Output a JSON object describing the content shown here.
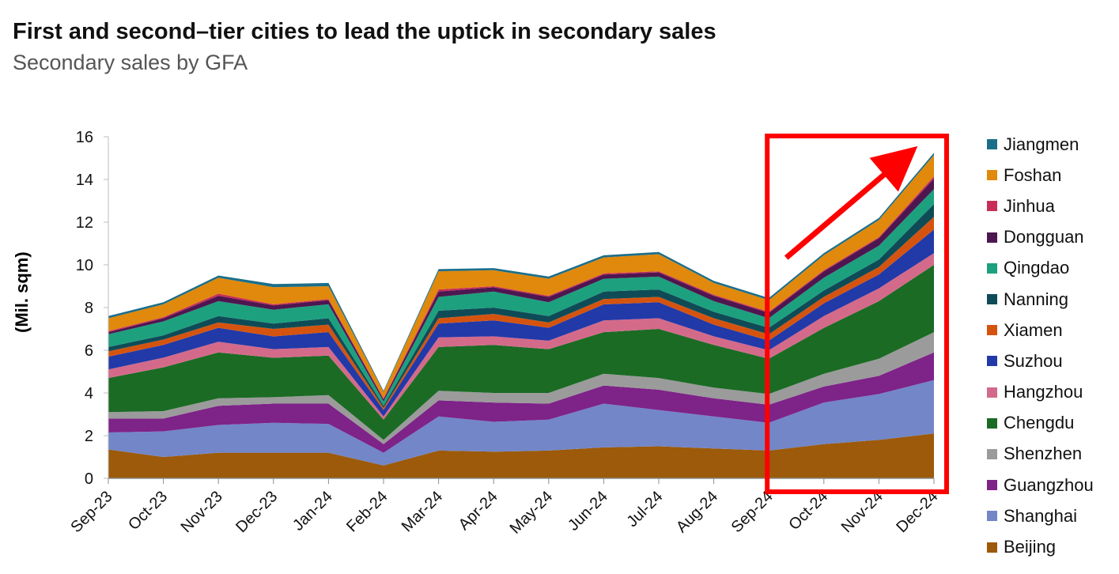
{
  "title": "First and second–tier cities to lead the uptick in secondary sales",
  "subtitle": "Secondary sales by GFA",
  "chart_data": {
    "type": "area",
    "stacked": true,
    "title": "First and second–tier cities to lead the uptick in secondary sales",
    "subtitle": "Secondary sales by GFA",
    "ylabel": "(Mil. sqm)",
    "xlabel": "",
    "ylim": [
      0,
      16
    ],
    "yticks": [
      "0",
      "2",
      "4",
      "6",
      "8",
      "10",
      "12",
      "14",
      "16"
    ],
    "grid": false,
    "legend_position": "right",
    "categories": [
      "Sep-23",
      "Oct-23",
      "Nov-23",
      "Dec-23",
      "Jan-24",
      "Feb-24",
      "Mar-24",
      "Apr-24",
      "May-24",
      "Jun-24",
      "Jul-24",
      "Aug-24",
      "Sep-24",
      "Oct-24",
      "Nov-24",
      "Dec-24"
    ],
    "series": [
      {
        "name": "Beijing",
        "color": "#9C5A0A",
        "values": [
          1.35,
          1.0,
          1.2,
          1.2,
          1.2,
          0.6,
          1.3,
          1.25,
          1.3,
          1.45,
          1.5,
          1.4,
          1.3,
          1.6,
          1.8,
          2.1
        ]
      },
      {
        "name": "Shanghai",
        "color": "#7286C8",
        "values": [
          0.8,
          1.2,
          1.3,
          1.4,
          1.35,
          0.6,
          1.6,
          1.4,
          1.45,
          2.05,
          1.7,
          1.5,
          1.3,
          1.95,
          2.15,
          2.5
        ]
      },
      {
        "name": "Guangzhou",
        "color": "#7E2388",
        "values": [
          0.65,
          0.6,
          0.9,
          0.9,
          0.95,
          0.4,
          0.75,
          0.9,
          0.75,
          0.85,
          0.95,
          0.85,
          0.85,
          0.75,
          0.85,
          1.3
        ]
      },
      {
        "name": "Shenzhen",
        "color": "#9B9B9B",
        "values": [
          0.3,
          0.35,
          0.35,
          0.3,
          0.4,
          0.2,
          0.45,
          0.45,
          0.5,
          0.55,
          0.55,
          0.5,
          0.5,
          0.6,
          0.8,
          0.95
        ]
      },
      {
        "name": "Chengdu",
        "color": "#1B6B24",
        "values": [
          1.6,
          2.05,
          2.15,
          1.85,
          1.85,
          0.95,
          2.05,
          2.25,
          2.05,
          1.95,
          2.3,
          2.0,
          1.65,
          2.15,
          2.7,
          3.15
        ]
      },
      {
        "name": "Hangzhou",
        "color": "#D46A8A",
        "values": [
          0.4,
          0.45,
          0.5,
          0.4,
          0.4,
          0.15,
          0.45,
          0.4,
          0.4,
          0.55,
          0.5,
          0.4,
          0.4,
          0.55,
          0.6,
          0.55
        ]
      },
      {
        "name": "Suzhou",
        "color": "#2239A8",
        "values": [
          0.6,
          0.6,
          0.65,
          0.6,
          0.7,
          0.3,
          0.65,
          0.75,
          0.6,
          0.75,
          0.75,
          0.55,
          0.45,
          0.6,
          0.65,
          1.1
        ]
      },
      {
        "name": "Xiamen",
        "color": "#D4540F",
        "values": [
          0.25,
          0.25,
          0.25,
          0.35,
          0.35,
          0.1,
          0.25,
          0.3,
          0.25,
          0.25,
          0.25,
          0.3,
          0.3,
          0.3,
          0.35,
          0.6
        ]
      },
      {
        "name": "Nanning",
        "color": "#0F4B57",
        "values": [
          0.2,
          0.2,
          0.3,
          0.25,
          0.3,
          0.1,
          0.35,
          0.3,
          0.3,
          0.35,
          0.35,
          0.3,
          0.3,
          0.3,
          0.35,
          0.6
        ]
      },
      {
        "name": "Qingdao",
        "color": "#1DA07E",
        "values": [
          0.6,
          0.65,
          0.7,
          0.65,
          0.65,
          0.2,
          0.65,
          0.75,
          0.65,
          0.6,
          0.6,
          0.5,
          0.45,
          0.6,
          0.65,
          0.7
        ]
      },
      {
        "name": "Dongguan",
        "color": "#4E1650",
        "values": [
          0.1,
          0.15,
          0.25,
          0.2,
          0.2,
          0.1,
          0.25,
          0.2,
          0.25,
          0.2,
          0.2,
          0.25,
          0.25,
          0.3,
          0.35,
          0.5
        ]
      },
      {
        "name": "Jinhua",
        "color": "#C72D59",
        "values": [
          0.05,
          0.05,
          0.1,
          0.05,
          0.05,
          0.05,
          0.1,
          0.05,
          0.05,
          0.05,
          0.05,
          0.05,
          0.05,
          0.05,
          0.05,
          0.1
        ]
      },
      {
        "name": "Foshan",
        "color": "#E0890C",
        "values": [
          0.6,
          0.6,
          0.75,
          0.8,
          0.6,
          0.3,
          0.85,
          0.75,
          0.8,
          0.75,
          0.8,
          0.55,
          0.55,
          0.7,
          0.8,
          1.0
        ]
      },
      {
        "name": "Jiangmen",
        "color": "#1B6E8A",
        "values": [
          0.1,
          0.1,
          0.1,
          0.15,
          0.15,
          0.05,
          0.1,
          0.1,
          0.1,
          0.1,
          0.1,
          0.1,
          0.1,
          0.1,
          0.1,
          0.1
        ]
      }
    ],
    "highlight": {
      "from_category": "Sep-24",
      "to_category": "Dec-24",
      "color": "#FF0000"
    }
  }
}
